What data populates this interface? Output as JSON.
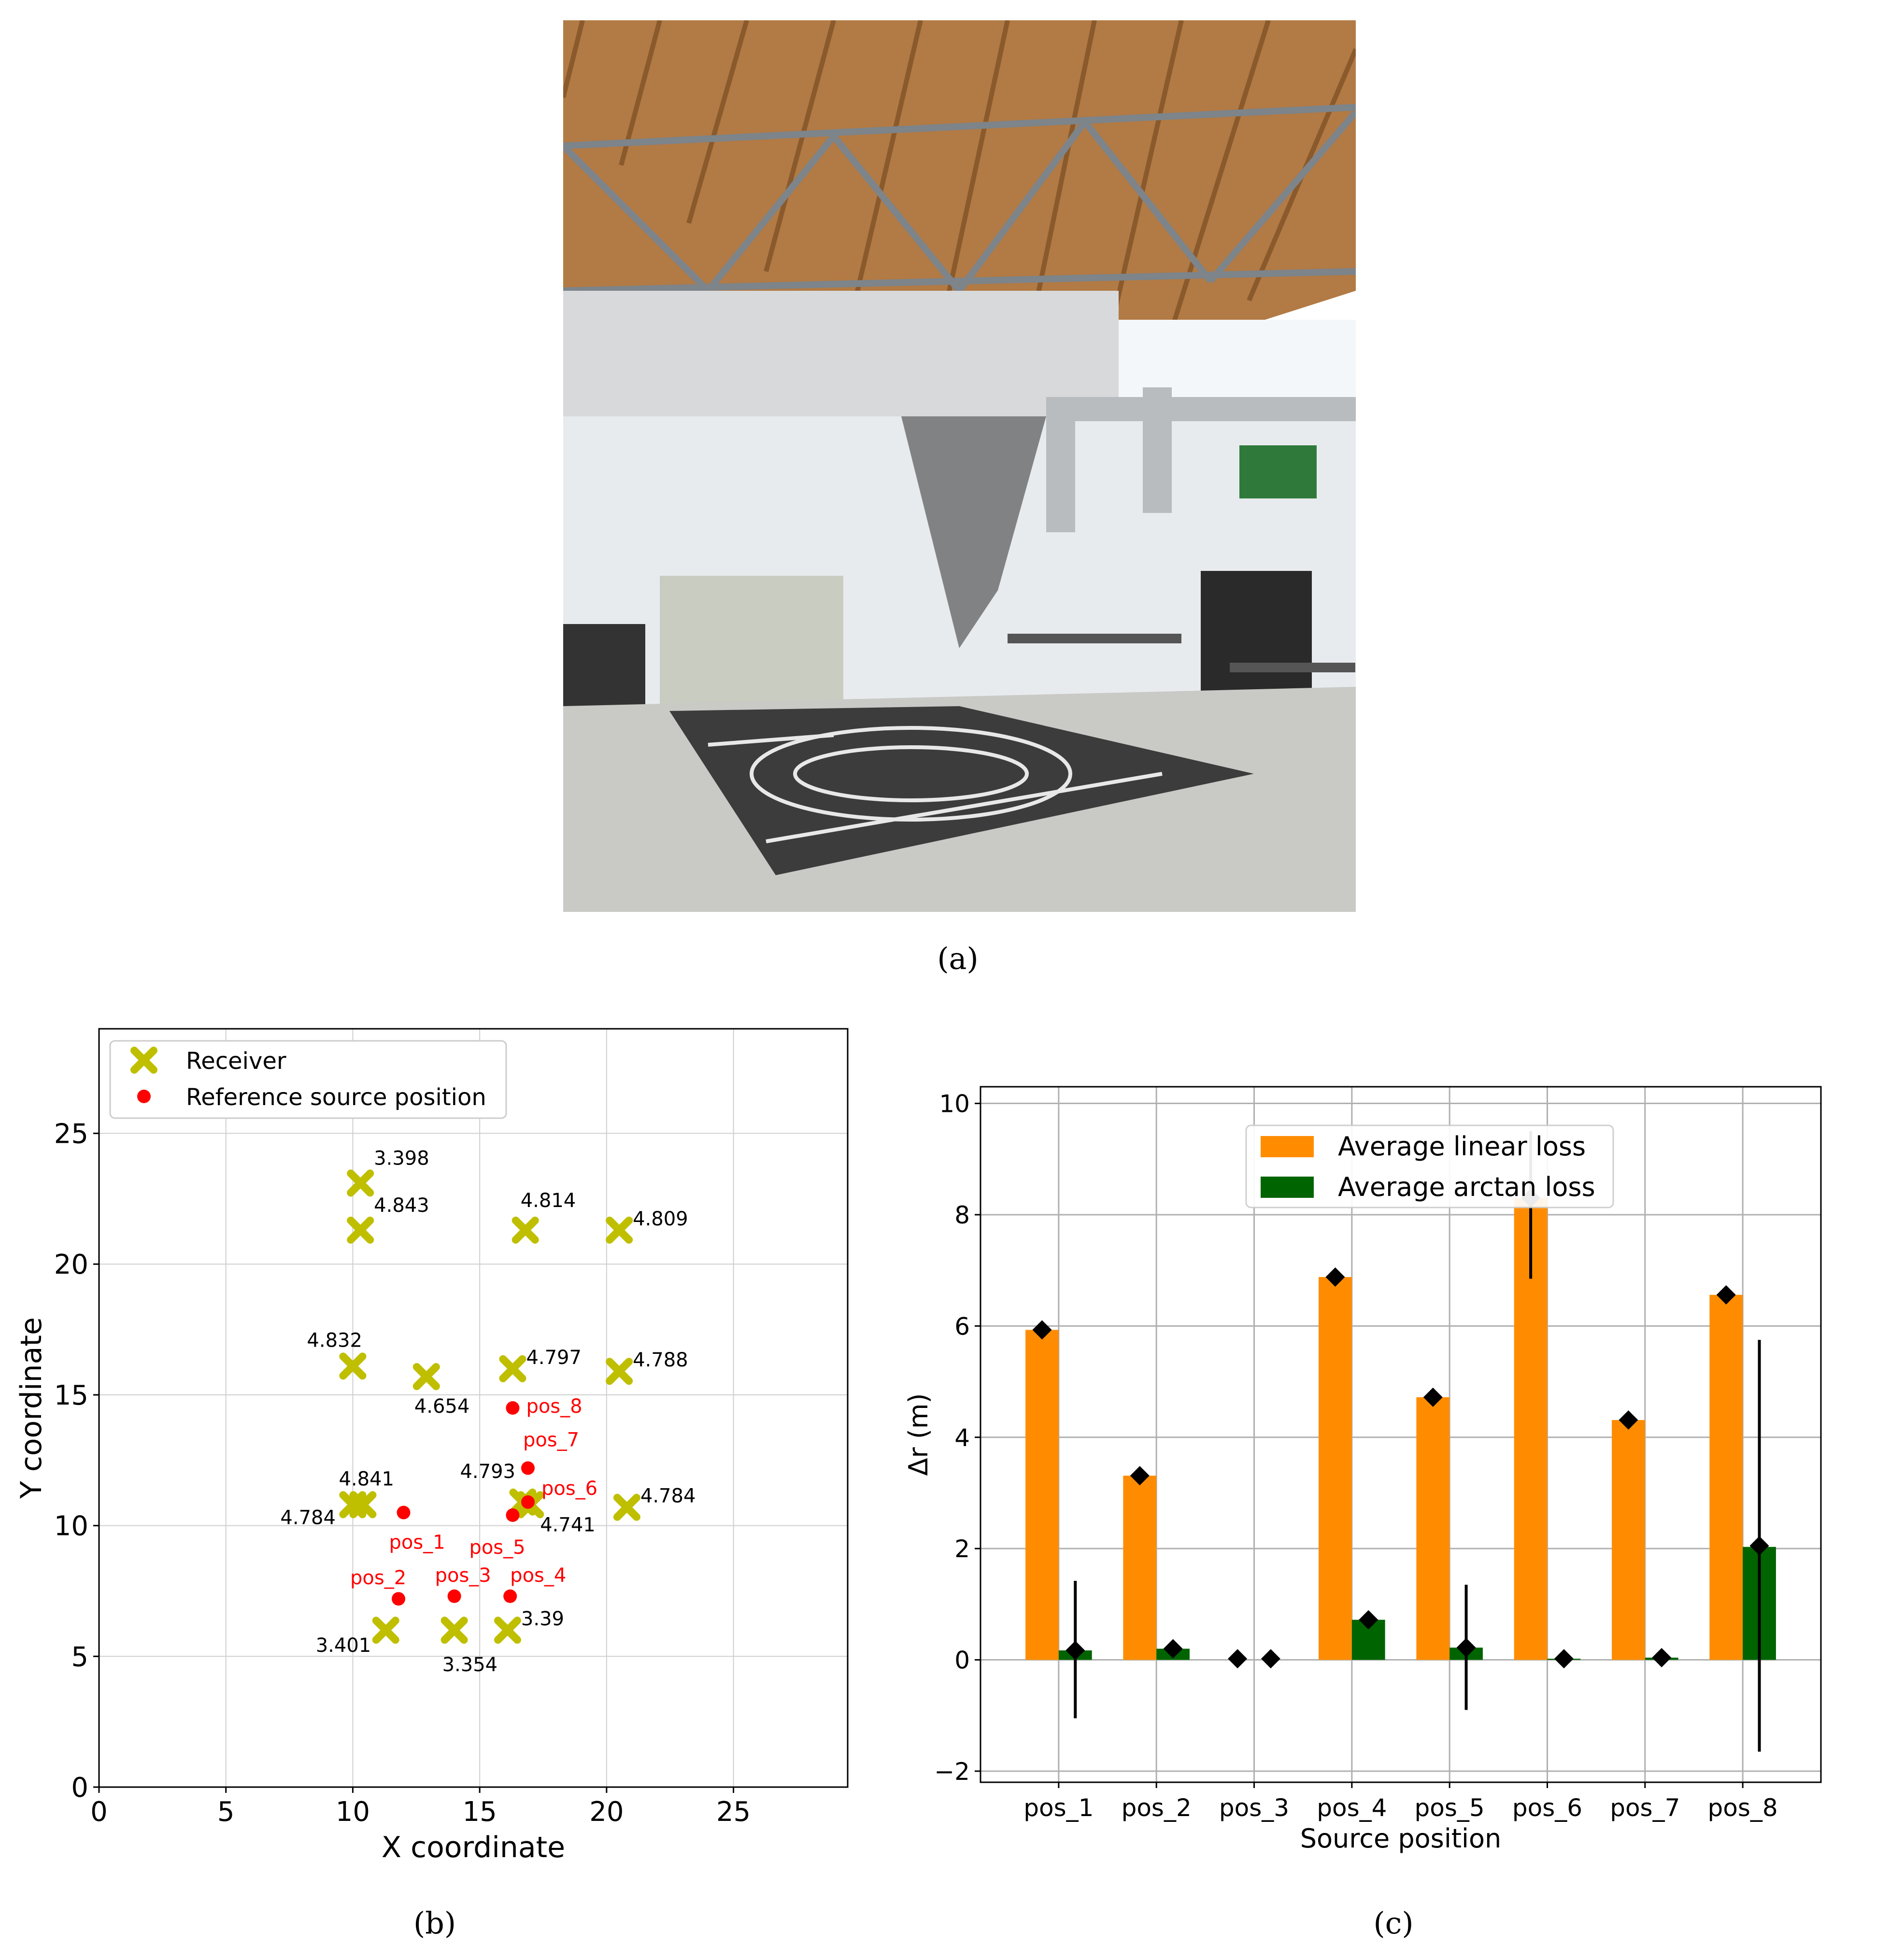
{
  "captions": {
    "a": "(a)",
    "b": "(b)",
    "c": "(c)"
  },
  "photo": {
    "description_icon": "hangar-lab-photo-icon",
    "colors": {
      "ceiling": "#b07a45",
      "wall": "#e9ecef",
      "floor": "#c8c8c5",
      "mat": "#3f3f3f",
      "steel": "#8a8f94"
    }
  },
  "chart_data": [
    {
      "id": "b",
      "type": "scatter",
      "xlabel": "X coordinate",
      "ylabel": "Y coordinate",
      "xlim": [
        0,
        29.5
      ],
      "ylim": [
        0,
        29
      ],
      "xticks": [
        0,
        5,
        10,
        15,
        20,
        25
      ],
      "yticks": [
        0,
        5,
        10,
        15,
        20,
        25
      ],
      "grid": true,
      "legend_placement": "top-left",
      "colors": {
        "receiver": "#bfbf00",
        "source": "#ff0000",
        "label": "#000000"
      },
      "series": [
        {
          "name": "Receiver",
          "marker": "X",
          "points": [
            {
              "x": 10.3,
              "y": 23.1,
              "label": "3.398"
            },
            {
              "x": 10.3,
              "y": 21.3,
              "label": "4.843"
            },
            {
              "x": 16.8,
              "y": 21.3,
              "label": "4.814"
            },
            {
              "x": 20.5,
              "y": 21.3,
              "label": "4.809"
            },
            {
              "x": 10.0,
              "y": 16.1,
              "label": "4.832"
            },
            {
              "x": 12.9,
              "y": 15.7,
              "label": "4.654"
            },
            {
              "x": 16.3,
              "y": 16.0,
              "label": "4.797"
            },
            {
              "x": 20.5,
              "y": 15.9,
              "label": "4.788"
            },
            {
              "x": 10.0,
              "y": 10.8,
              "label": "4.784"
            },
            {
              "x": 10.4,
              "y": 10.8,
              "label": "4.841"
            },
            {
              "x": 16.7,
              "y": 10.9,
              "label": "4.793"
            },
            {
              "x": 17.0,
              "y": 10.8,
              "label": "4.741"
            },
            {
              "x": 20.8,
              "y": 10.7,
              "label": "4.784"
            },
            {
              "x": 11.3,
              "y": 6.0,
              "label": "3.401"
            },
            {
              "x": 14.0,
              "y": 6.0,
              "label": "3.354"
            },
            {
              "x": 16.1,
              "y": 6.0,
              "label": "3.39"
            }
          ]
        },
        {
          "name": "Reference source position",
          "marker": "o",
          "points": [
            {
              "x": 12.0,
              "y": 10.5,
              "label": "pos_1"
            },
            {
              "x": 11.8,
              "y": 7.2,
              "label": "pos_2"
            },
            {
              "x": 14.0,
              "y": 7.3,
              "label": "pos_3"
            },
            {
              "x": 16.2,
              "y": 7.3,
              "label": "pos_4"
            },
            {
              "x": 16.3,
              "y": 10.4,
              "label": "pos_5"
            },
            {
              "x": 16.9,
              "y": 10.9,
              "label": "pos_6"
            },
            {
              "x": 16.9,
              "y": 12.2,
              "label": "pos_7"
            },
            {
              "x": 16.3,
              "y": 14.5,
              "label": "pos_8"
            }
          ]
        }
      ]
    },
    {
      "id": "c",
      "type": "bar",
      "xlabel": "Source position",
      "ylabel": "Δr (m)",
      "ylim": [
        -2.2,
        10.3
      ],
      "yticks": [
        -2,
        0,
        2,
        4,
        6,
        8,
        10
      ],
      "grid": true,
      "legend_placement": "top-center",
      "categories": [
        "pos_1",
        "pos_2",
        "pos_3",
        "pos_4",
        "pos_5",
        "pos_6",
        "pos_7",
        "pos_8"
      ],
      "series": [
        {
          "name": "Average linear loss",
          "color": "#ff8c00",
          "values": [
            5.93,
            3.31,
            0.0,
            6.88,
            4.72,
            8.3,
            4.31,
            6.56
          ],
          "markers": [
            5.93,
            3.31,
            0.02,
            6.88,
            4.72,
            8.3,
            4.31,
            6.56
          ],
          "error": [
            null,
            null,
            null,
            null,
            null,
            [
              6.85,
              9.5
            ],
            null,
            null
          ]
        },
        {
          "name": "Average arctan loss",
          "color": "#006400",
          "values": [
            0.17,
            0.2,
            0.0,
            0.72,
            0.22,
            0.02,
            0.04,
            2.03
          ],
          "markers": [
            0.17,
            0.2,
            0.02,
            0.72,
            0.22,
            0.02,
            0.04,
            2.05
          ],
          "error": [
            [
              -1.05,
              1.42
            ],
            null,
            null,
            null,
            [
              -0.9,
              1.35
            ],
            null,
            null,
            [
              -1.65,
              5.75
            ]
          ]
        }
      ]
    }
  ]
}
